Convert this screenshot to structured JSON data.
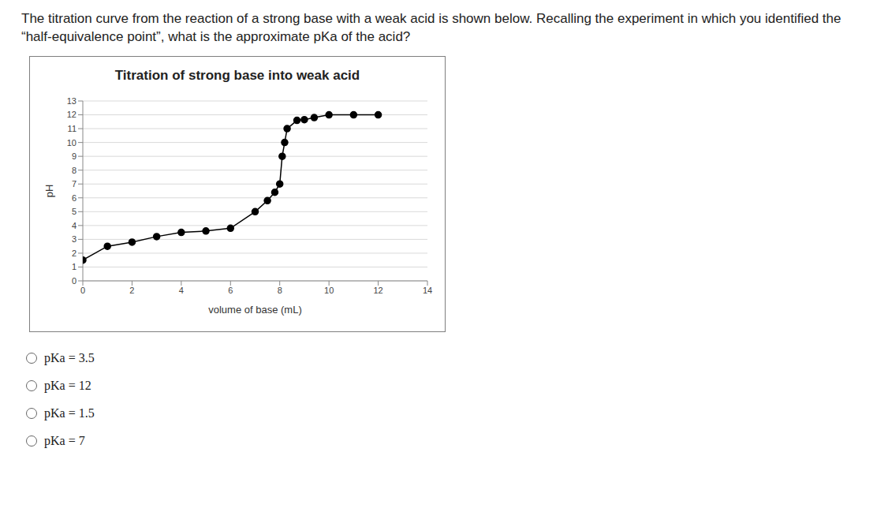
{
  "question": "The titration curve from the reaction of a strong base with a weak acid is shown below. Recalling the experiment in which you identified the “half-equivalence point”, what is the approximate pKa of the acid?",
  "chart_data": {
    "type": "line",
    "title": "Titration of strong base into weak acid",
    "x_label": "volume of base (mL)",
    "y_label": "pH",
    "x": [
      0,
      1,
      2,
      3,
      4,
      5,
      6,
      7,
      7.5,
      7.8,
      8,
      8.1,
      8.2,
      8.3,
      8.7,
      9,
      9.4,
      10,
      11,
      12
    ],
    "values": [
      1.5,
      2.5,
      2.8,
      3.2,
      3.5,
      3.6,
      3.8,
      5.0,
      5.8,
      6.4,
      7.0,
      9.0,
      10.0,
      11.0,
      11.6,
      11.65,
      11.8,
      12,
      12,
      12
    ],
    "color": "#000000",
    "marker": "circle",
    "xlim": [
      0,
      14
    ],
    "xticks": [
      0,
      2,
      4,
      6,
      8,
      10,
      12,
      14
    ],
    "ylim": [
      0,
      13
    ],
    "yticks": [
      0,
      1,
      2,
      3,
      4,
      5,
      6,
      7,
      8,
      9,
      10,
      11,
      12,
      13
    ],
    "grid": true
  },
  "options": [
    "pKa = 3.5",
    "pKa = 12",
    "pKa = 1.5",
    "pKa = 7"
  ]
}
